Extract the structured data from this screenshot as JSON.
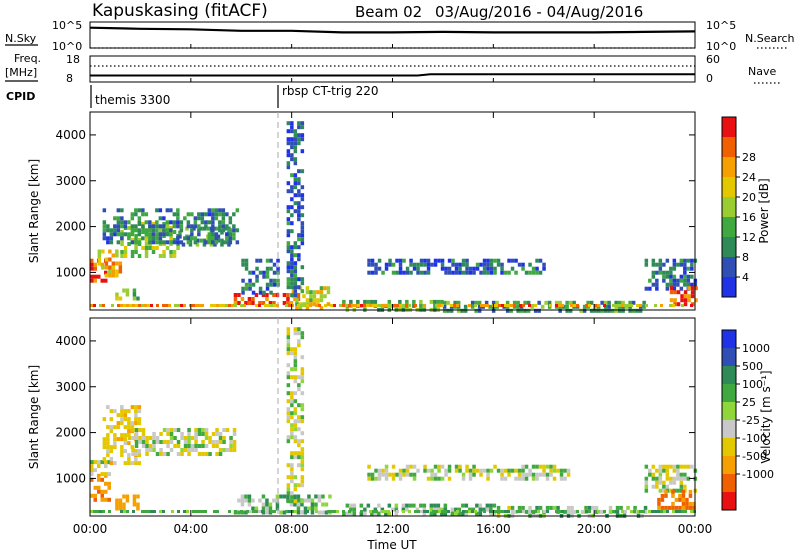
{
  "header": {
    "radar": "Kapuskasing (fitACF)",
    "beam_label": "Beam 02",
    "date_range": "03/Aug/2016 - 04/Aug/2016"
  },
  "noise_panel": {
    "left_label": "N.Sky",
    "right_label": "N.Search",
    "left_ticks": [
      "10^5",
      "10^0"
    ],
    "right_ticks": [
      "10^5",
      "10^0"
    ]
  },
  "freq_panel": {
    "left_label_1": "Freq.",
    "left_label_2": "[MHz]",
    "right_label": "Nave",
    "left_ticks": [
      "18",
      "8"
    ],
    "right_ticks": [
      "60",
      "0"
    ]
  },
  "cpid_panel": {
    "label": "CPID",
    "segments": [
      "themis 3300",
      "rbsp CT-trig 220"
    ]
  },
  "x_axis": {
    "label": "Time UT",
    "ticks": [
      "00:00",
      "04:00",
      "08:00",
      "12:00",
      "16:00",
      "20:00",
      "00:00"
    ]
  },
  "power_panel": {
    "ylabel": "Slant Range [km]",
    "yticks": [
      "1000",
      "2000",
      "3000",
      "4000"
    ],
    "colorbar_label": "Power [dB]",
    "colorbar_ticks": [
      "4",
      "8",
      "12",
      "16",
      "20",
      "24",
      "28"
    ],
    "colors": [
      "#1f32e6",
      "#2f4fb5",
      "#2e8b57",
      "#3fa83f",
      "#9acd32",
      "#e3c800",
      "#f5a000",
      "#f06000",
      "#e81010"
    ]
  },
  "velocity_panel": {
    "ylabel": "Slant Range [km]",
    "yticks": [
      "1000",
      "2000",
      "3000",
      "4000"
    ],
    "colorbar_label": "Velocity [m s⁻¹]",
    "colorbar_ticks": [
      "1000",
      "500",
      "100",
      "25",
      "-25",
      "-100",
      "-500",
      "-1000"
    ],
    "colors": [
      "#1f32e6",
      "#2f4fb5",
      "#2e8b57",
      "#3fa83f",
      "#8fd63a",
      "#c8c8c8",
      "#e3c800",
      "#f5a000",
      "#f06000",
      "#e81010"
    ]
  },
  "chart_data": [
    {
      "type": "line",
      "panel": "noise",
      "x": [
        0,
        2,
        4,
        6,
        8,
        10,
        12,
        14,
        16,
        18,
        20,
        22,
        24
      ],
      "series": [
        {
          "values": [
            3.9,
            3.7,
            3.6,
            3.3,
            3.3,
            3.0,
            3.0,
            3.1,
            3.0,
            3.0,
            3.0,
            3.1,
            3.2
          ]
        },
        {
          "values": [
            0.0,
            0.0,
            0.0,
            0.0,
            0.0,
            0.0,
            0.0,
            0.0,
            0.0,
            0.0,
            0.0,
            0.0,
            0.0
          ]
        }
      ],
      "xlim": [
        0,
        24
      ],
      "ylim": [
        0,
        5
      ]
    },
    {
      "type": "line",
      "panel": "frequency",
      "x": [
        0,
        6,
        7.5,
        13,
        13.5,
        24
      ],
      "series": [
        {
          "values": [
            10.5,
            10.5,
            10.5,
            10.5,
            11,
            11
          ]
        }
      ],
      "xlim": [
        0,
        24
      ],
      "ylim": [
        8,
        18
      ]
    },
    {
      "type": "heatmap",
      "panel": "power",
      "z_label": "Power [dB]",
      "xlim": [
        0,
        24
      ],
      "ylim": [
        180,
        4500
      ],
      "zlim": [
        0,
        30
      ],
      "regions": [
        {
          "t": [
            0.0,
            0.6
          ],
          "r": [
            800,
            1300
          ],
          "z": 26
        },
        {
          "t": [
            0.3,
            1.2
          ],
          "r": [
            950,
            1500
          ],
          "z": 20
        },
        {
          "t": [
            1.2,
            3.5
          ],
          "r": [
            1400,
            2100
          ],
          "z": 14
        },
        {
          "t": [
            3.5,
            5.5
          ],
          "r": [
            1600,
            2000
          ],
          "z": 10
        },
        {
          "t": [
            0.5,
            5.8
          ],
          "r": [
            1700,
            2400
          ],
          "z": 8
        },
        {
          "t": [
            1.0,
            2.0
          ],
          "r": [
            400,
            650
          ],
          "z": 14
        },
        {
          "t": [
            5.7,
            8.3
          ],
          "r": [
            300,
            550
          ],
          "z": 26
        },
        {
          "t": [
            8.0,
            9.5
          ],
          "r": [
            250,
            700
          ],
          "z": 18
        },
        {
          "t": [
            7.8,
            8.4
          ],
          "r": [
            500,
            4300
          ],
          "z": 6
        },
        {
          "t": [
            6.0,
            7.5
          ],
          "r": [
            600,
            1300
          ],
          "z": 6
        },
        {
          "t": [
            10.0,
            14.0
          ],
          "r": [
            200,
            400
          ],
          "z": 12
        },
        {
          "t": [
            11.0,
            18.0
          ],
          "r": [
            1000,
            1300
          ],
          "z": 6
        },
        {
          "t": [
            14.0,
            22.0
          ],
          "r": [
            200,
            380
          ],
          "z": 10
        },
        {
          "t": [
            22.0,
            24.0
          ],
          "r": [
            650,
            1300
          ],
          "z": 6
        },
        {
          "t": [
            23.0,
            24.0
          ],
          "r": [
            300,
            700
          ],
          "z": 26
        }
      ]
    },
    {
      "type": "heatmap",
      "panel": "velocity",
      "z_label": "Velocity [m s⁻¹]",
      "xlim": [
        0,
        24
      ],
      "ylim": [
        180,
        4500
      ],
      "zlim": [
        -1000,
        1000
      ],
      "regions": [
        {
          "t": [
            0.0,
            0.8
          ],
          "r": [
            500,
            1100
          ],
          "z": -300
        },
        {
          "t": [
            0.0,
            0.9
          ],
          "r": [
            1100,
            1400
          ],
          "z": 0
        },
        {
          "t": [
            0.5,
            2.0
          ],
          "r": [
            1300,
            2600
          ],
          "z": -60
        },
        {
          "t": [
            1.5,
            5.8
          ],
          "r": [
            1500,
            2100
          ],
          "z": 0
        },
        {
          "t": [
            1.0,
            2.0
          ],
          "r": [
            380,
            650
          ],
          "z": -200
        },
        {
          "t": [
            5.7,
            9.5
          ],
          "r": [
            250,
            650
          ],
          "z": 60
        },
        {
          "t": [
            7.8,
            8.4
          ],
          "r": [
            500,
            4300
          ],
          "z": 0
        },
        {
          "t": [
            10.0,
            16.0
          ],
          "r": [
            200,
            450
          ],
          "z": 60
        },
        {
          "t": [
            11.0,
            19.0
          ],
          "r": [
            1000,
            1300
          ],
          "z": 0
        },
        {
          "t": [
            16.0,
            22.0
          ],
          "r": [
            200,
            400
          ],
          "z": 40
        },
        {
          "t": [
            22.0,
            24.0
          ],
          "r": [
            700,
            1300
          ],
          "z": 0
        },
        {
          "t": [
            22.5,
            24.0
          ],
          "r": [
            400,
            750
          ],
          "z": -300
        }
      ]
    }
  ]
}
